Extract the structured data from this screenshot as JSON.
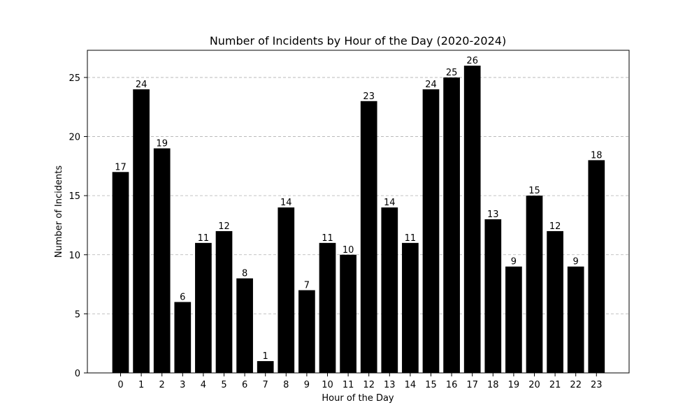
{
  "chart_data": {
    "type": "bar",
    "title": "Number of Incidents by Hour of the Day (2020-2024)",
    "xlabel": "Hour of the Day",
    "ylabel": "Number of Incidents",
    "categories": [
      "0",
      "1",
      "2",
      "3",
      "4",
      "5",
      "6",
      "7",
      "8",
      "9",
      "10",
      "11",
      "12",
      "13",
      "14",
      "15",
      "16",
      "17",
      "18",
      "19",
      "20",
      "21",
      "22",
      "23"
    ],
    "values": [
      17,
      24,
      19,
      6,
      11,
      12,
      8,
      1,
      14,
      7,
      11,
      10,
      23,
      14,
      11,
      24,
      25,
      26,
      13,
      9,
      15,
      12,
      9,
      18
    ],
    "ylim": [
      0,
      27.3
    ],
    "yticks": [
      0,
      5,
      10,
      15,
      20,
      25
    ],
    "ytick_labels": [
      "0",
      "5",
      "10",
      "15",
      "20",
      "25"
    ],
    "grid": "y-dashed",
    "bar_color": "#000000",
    "grid_color": "#b0b0b0"
  }
}
